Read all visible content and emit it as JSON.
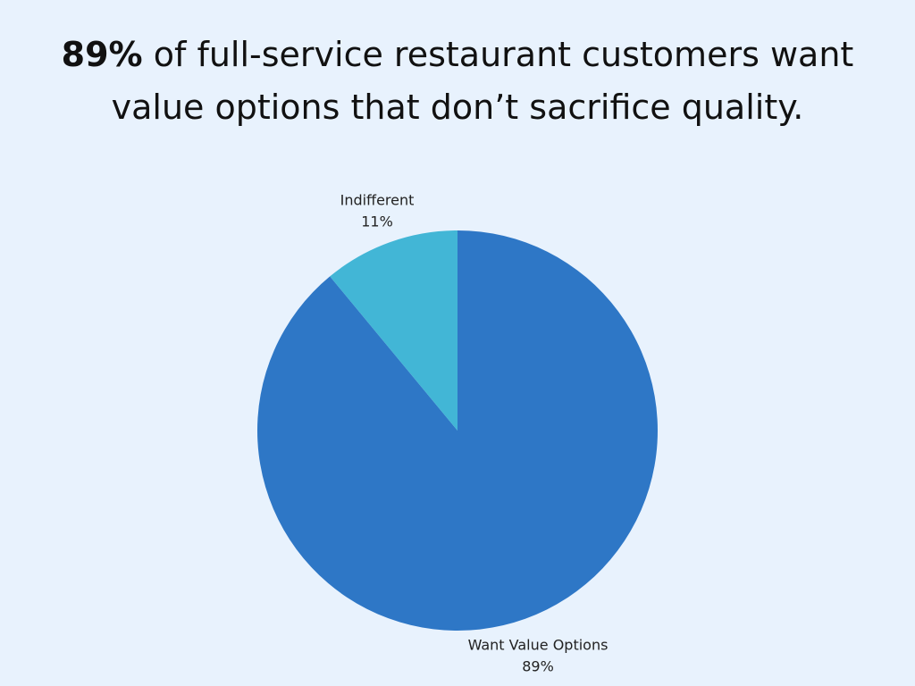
{
  "chart_data": {
    "type": "pie",
    "title_emphasis": "89%",
    "title": "of full-service restaurant customers want value options that don’t sacrifice quality.",
    "categories": [
      "Want Value Options",
      "Indifferent"
    ],
    "values": [
      89,
      11
    ],
    "value_labels": [
      "89%",
      "11%"
    ],
    "colors": [
      "#2e77c6",
      "#42b6d6"
    ]
  }
}
